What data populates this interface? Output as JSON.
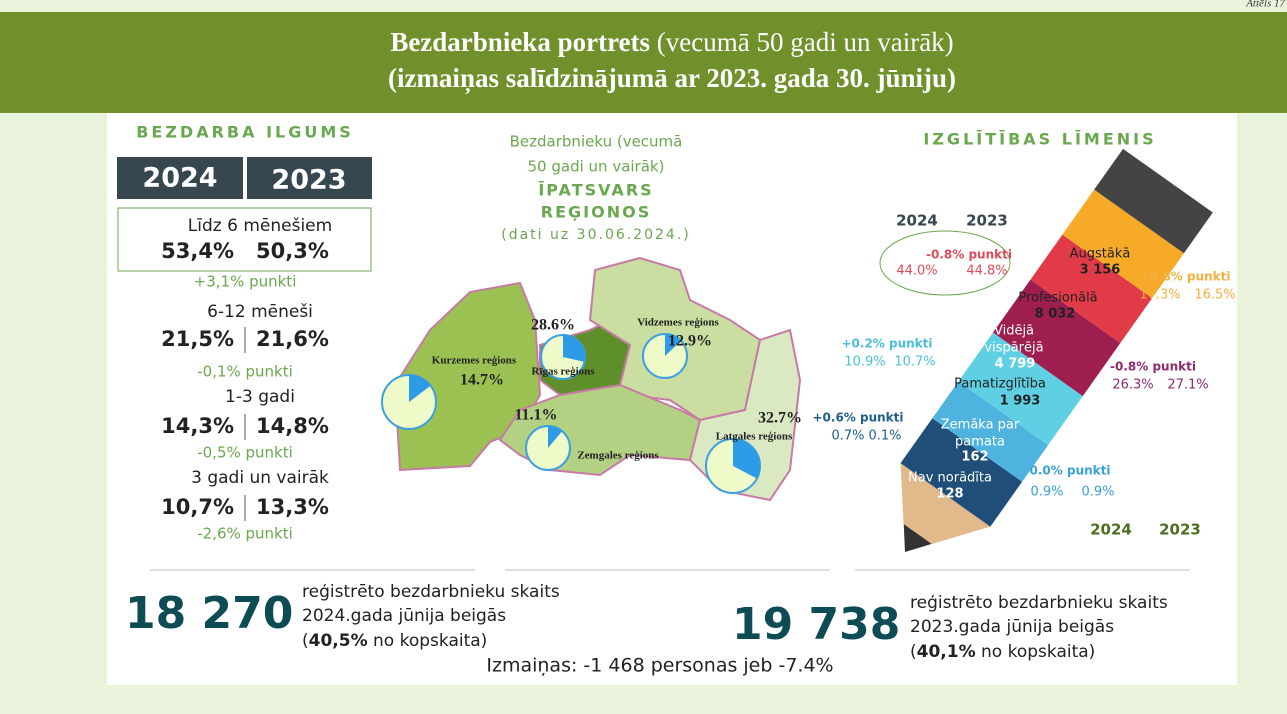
{
  "figure_label": "Attēls 17",
  "header": {
    "title_bold": "Bezdarbnieka portrets",
    "title_rest": " (vecumā 50 gadi un vairāk)",
    "subtitle": "(izmaiņas salīdzinājumā ar 2023. gada 30. jūniju)"
  },
  "duration": {
    "title": "BEZDARBA ILGUMS",
    "years": [
      "2024",
      "2023"
    ],
    "groups": [
      {
        "label": "Līdz 6 mēnešiem",
        "v2024": "53,4%",
        "v2023": "50,3%",
        "change": "+3,1% punkti"
      },
      {
        "label": "6-12 mēneši",
        "v2024": "21,5%",
        "v2023": "21,6%",
        "change": "-0,1% punkti"
      },
      {
        "label": "1-3 gadi",
        "v2024": "14,3%",
        "v2023": "14,8%",
        "change": "-0,5% punkti"
      },
      {
        "label": "3 gadi un vairāk",
        "v2024": "10,7%",
        "v2023": "13,3%",
        "change": "-2,6% punkti"
      }
    ]
  },
  "regions": {
    "title_lines": [
      "Bezdarbnieku (vecumā",
      "50 gadi un vairāk)"
    ],
    "title_bold": [
      "ĪPATSVARS",
      "REĢIONOS"
    ],
    "note": "(dati uz 30.06.2024.)",
    "items": [
      {
        "name": "Rīgas reģions",
        "value": 28.6,
        "label": "28.6%"
      },
      {
        "name": "Vidzemes reģions",
        "value": 12.9,
        "label": "12.9%"
      },
      {
        "name": "Kurzemes reģions",
        "value": 14.7,
        "label": "14.7%"
      },
      {
        "name": "Zemgales reģions",
        "value": 11.1,
        "label": "11.1%"
      },
      {
        "name": "Latgales reģions",
        "value": 32.7,
        "label": "32.7%"
      }
    ]
  },
  "education": {
    "title": "IZGLĪTĪBAS LĪMENIS",
    "years": [
      "2024",
      "2023"
    ],
    "levels": [
      {
        "name_lines": [
          "Augstākā"
        ],
        "count": "3 156",
        "change": "+0.8% punkti",
        "p2024": "17.3%",
        "p2023": "16.5%"
      },
      {
        "name_lines": [
          "Profesionālā"
        ],
        "count": "8 032",
        "change": "-0.8% punkti",
        "p2024": "44.0%",
        "p2023": "44.8%"
      },
      {
        "name_lines": [
          "Vidējā",
          "vispārējā"
        ],
        "count": "4 799",
        "change": "-0.8% punkti",
        "p2024": "26.3%",
        "p2023": "27.1%"
      },
      {
        "name_lines": [
          "Pamatizglītība"
        ],
        "count": "1 993",
        "change": "+0.2% punkti",
        "p2024": "10.9%",
        "p2023": "10.7%"
      },
      {
        "name_lines": [
          "Zemāka par",
          "pamata"
        ],
        "count": "162",
        "change": "0.0% punkti",
        "p2024": "0.9%",
        "p2023": "0.9%"
      },
      {
        "name_lines": [
          "Nav norādīta"
        ],
        "count": "128",
        "change": "+0.6% punkti",
        "p2024": "0.7%",
        "p2023": "0.1%"
      }
    ]
  },
  "totals": [
    {
      "number": "18 270",
      "lines": [
        "reģistrēto bezdarbnieku skaits",
        "2024.gada jūnija beigās"
      ],
      "share_open": "(",
      "share": "40,5%",
      "share_close": " no kopskaita)"
    },
    {
      "number": "19 738",
      "lines": [
        "reģistrēto bezdarbnieku skaits",
        "2023.gada jūnija beigās"
      ],
      "share_open": "(",
      "share": "40,1%",
      "share_close": " no kopskaita)"
    }
  ],
  "change_note": "Izmaiņas: -1 468 personas jeb -7.4%"
}
